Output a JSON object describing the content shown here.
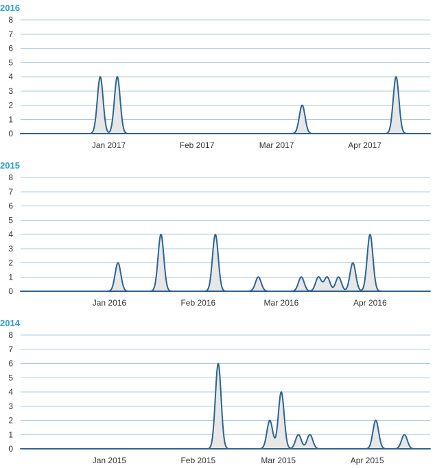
{
  "chart_data": [
    {
      "type": "area",
      "title": "2016",
      "ylim": [
        0,
        8
      ],
      "yticks": [
        "0",
        "1",
        "2",
        "3",
        "4",
        "5",
        "6",
        "7",
        "8"
      ],
      "xlim_days": [
        0,
        144
      ],
      "xticks": [
        {
          "label": "Jan 2017",
          "day": 31
        },
        {
          "label": "Feb 2017",
          "day": 62
        },
        {
          "label": "Mar 2017",
          "day": 90
        },
        {
          "label": "Apr 2017",
          "day": 121
        }
      ],
      "peaks": [
        {
          "center": 28,
          "value": 4
        },
        {
          "center": 34,
          "value": 4
        },
        {
          "center": 99,
          "value": 2
        },
        {
          "center": 132,
          "value": 4
        }
      ]
    },
    {
      "type": "area",
      "title": "2015",
      "ylim": [
        0,
        8
      ],
      "yticks": [
        "0",
        "1",
        "2",
        "3",
        "4",
        "5",
        "6",
        "7",
        "8"
      ],
      "xlim_days": [
        0,
        143
      ],
      "xticks": [
        {
          "label": "Jan 2016",
          "day": 31
        },
        {
          "label": "Feb 2016",
          "day": 62
        },
        {
          "label": "Mar 2016",
          "day": 91
        },
        {
          "label": "Apr 2016",
          "day": 122
        }
      ],
      "peaks": [
        {
          "center": 34,
          "value": 2
        },
        {
          "center": 49,
          "value": 4
        },
        {
          "center": 68,
          "value": 4
        },
        {
          "center": 83,
          "value": 1
        },
        {
          "center": 98,
          "value": 1
        },
        {
          "center": 104,
          "value": 1
        },
        {
          "center": 107,
          "value": 1
        },
        {
          "center": 111,
          "value": 1
        },
        {
          "center": 116,
          "value": 2
        },
        {
          "center": 122,
          "value": 4
        }
      ]
    },
    {
      "type": "area",
      "title": "2014",
      "ylim": [
        0,
        8
      ],
      "yticks": [
        "0",
        "1",
        "2",
        "3",
        "4",
        "5",
        "6",
        "7",
        "8"
      ],
      "xlim_days": [
        0,
        143
      ],
      "xticks": [
        {
          "label": "Jan 2015",
          "day": 31
        },
        {
          "label": "Feb 2015",
          "day": 62
        },
        {
          "label": "Mar 2015",
          "day": 90
        },
        {
          "label": "Apr 2015",
          "day": 121
        }
      ],
      "peaks": [
        {
          "center": 69,
          "value": 6
        },
        {
          "center": 87,
          "value": 2
        },
        {
          "center": 91,
          "value": 4
        },
        {
          "center": 97,
          "value": 1
        },
        {
          "center": 101,
          "value": 1
        },
        {
          "center": 124,
          "value": 2
        },
        {
          "center": 134,
          "value": 1
        }
      ]
    }
  ]
}
